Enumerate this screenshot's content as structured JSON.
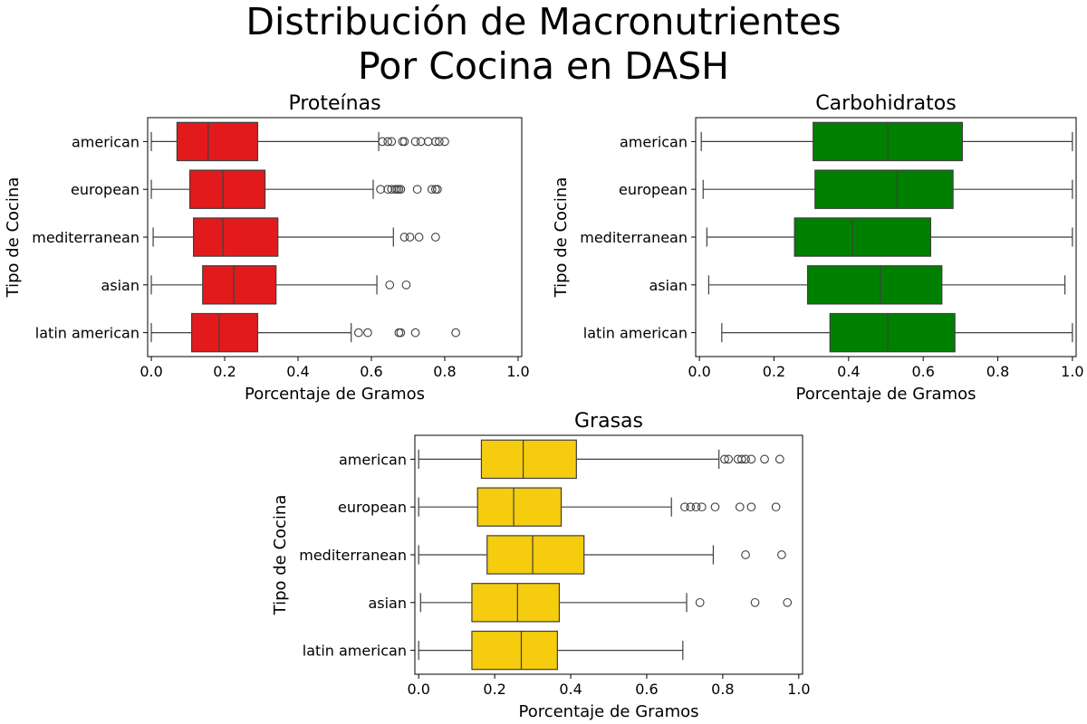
{
  "figure_title_line1": "Distribución de Macronutrientes",
  "figure_title_line2": "Por Cocina en DASH",
  "chart_data": [
    {
      "type": "box",
      "orientation": "horizontal",
      "title": "Proteínas",
      "xlabel": "Porcentaje de Gramos",
      "ylabel": "Tipo de Cocina",
      "color": "#e31a1c",
      "xlim": [
        0.0,
        1.0
      ],
      "xticks": [
        "0.0",
        "0.2",
        "0.4",
        "0.6",
        "0.8",
        "1.0"
      ],
      "grid": false,
      "categories": [
        "american",
        "european",
        "mediterranean",
        "asian",
        "latin american"
      ],
      "boxes": [
        {
          "whisker_low": 0.0,
          "q1": 0.07,
          "median": 0.155,
          "q3": 0.29,
          "whisker_high": 0.62,
          "outliers": [
            0.63,
            0.645,
            0.655,
            0.685,
            0.69,
            0.72,
            0.735,
            0.755,
            0.775,
            0.785,
            0.8
          ]
        },
        {
          "whisker_low": 0.0,
          "q1": 0.105,
          "median": 0.195,
          "q3": 0.31,
          "whisker_high": 0.605,
          "outliers": [
            0.625,
            0.645,
            0.655,
            0.665,
            0.67,
            0.675,
            0.68,
            0.725,
            0.765,
            0.775,
            0.78
          ]
        },
        {
          "whisker_low": 0.005,
          "q1": 0.115,
          "median": 0.195,
          "q3": 0.345,
          "whisker_high": 0.66,
          "outliers": [
            0.69,
            0.705,
            0.73,
            0.775
          ]
        },
        {
          "whisker_low": 0.0,
          "q1": 0.14,
          "median": 0.225,
          "q3": 0.34,
          "whisker_high": 0.615,
          "outliers": [
            0.65,
            0.695
          ]
        },
        {
          "whisker_low": 0.0,
          "q1": 0.11,
          "median": 0.185,
          "q3": 0.29,
          "whisker_high": 0.545,
          "outliers": [
            0.565,
            0.59,
            0.675,
            0.68,
            0.72,
            0.83
          ]
        }
      ]
    },
    {
      "type": "box",
      "orientation": "horizontal",
      "title": "Carbohidratos",
      "xlabel": "Porcentaje de Gramos",
      "ylabel": "Tipo de Cocina",
      "color": "#008000",
      "xlim": [
        0.0,
        1.0
      ],
      "xticks": [
        "0.0",
        "0.2",
        "0.4",
        "0.6",
        "0.8",
        "1.0"
      ],
      "grid": false,
      "categories": [
        "american",
        "european",
        "mediterranean",
        "asian",
        "latin american"
      ],
      "boxes": [
        {
          "whisker_low": 0.005,
          "q1": 0.305,
          "median": 0.505,
          "q3": 0.705,
          "whisker_high": 1.0,
          "outliers": []
        },
        {
          "whisker_low": 0.01,
          "q1": 0.31,
          "median": 0.53,
          "q3": 0.68,
          "whisker_high": 1.0,
          "outliers": []
        },
        {
          "whisker_low": 0.02,
          "q1": 0.255,
          "median": 0.41,
          "q3": 0.62,
          "whisker_high": 1.0,
          "outliers": []
        },
        {
          "whisker_low": 0.025,
          "q1": 0.29,
          "median": 0.485,
          "q3": 0.65,
          "whisker_high": 0.98,
          "outliers": []
        },
        {
          "whisker_low": 0.06,
          "q1": 0.35,
          "median": 0.505,
          "q3": 0.685,
          "whisker_high": 1.0,
          "outliers": []
        }
      ]
    },
    {
      "type": "box",
      "orientation": "horizontal",
      "title": "Grasas",
      "xlabel": "Porcentaje de Gramos",
      "ylabel": "Tipo de Cocina",
      "color": "#f5cc0e",
      "xlim": [
        0.0,
        1.0
      ],
      "xticks": [
        "0.0",
        "0.2",
        "0.4",
        "0.6",
        "0.8",
        "1.0"
      ],
      "grid": false,
      "categories": [
        "american",
        "european",
        "mediterranean",
        "asian",
        "latin american"
      ],
      "boxes": [
        {
          "whisker_low": 0.0,
          "q1": 0.165,
          "median": 0.275,
          "q3": 0.415,
          "whisker_high": 0.79,
          "outliers": [
            0.805,
            0.815,
            0.84,
            0.85,
            0.86,
            0.875,
            0.91,
            0.95
          ]
        },
        {
          "whisker_low": 0.0,
          "q1": 0.155,
          "median": 0.25,
          "q3": 0.375,
          "whisker_high": 0.665,
          "outliers": [
            0.7,
            0.715,
            0.73,
            0.745,
            0.78,
            0.845,
            0.875,
            0.94
          ]
        },
        {
          "whisker_low": 0.0,
          "q1": 0.18,
          "median": 0.3,
          "q3": 0.435,
          "whisker_high": 0.775,
          "outliers": [
            0.86,
            0.955
          ]
        },
        {
          "whisker_low": 0.005,
          "q1": 0.14,
          "median": 0.26,
          "q3": 0.37,
          "whisker_high": 0.705,
          "outliers": [
            0.74,
            0.885,
            0.97
          ]
        },
        {
          "whisker_low": 0.0,
          "q1": 0.14,
          "median": 0.27,
          "q3": 0.365,
          "whisker_high": 0.695,
          "outliers": []
        }
      ]
    }
  ]
}
